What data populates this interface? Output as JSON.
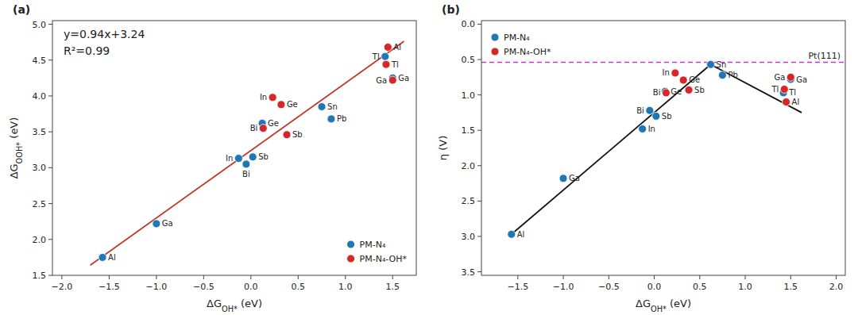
{
  "chart_data": [
    {
      "type": "scatter",
      "title": "(a)",
      "x_label": "ΔGOH* (eV)",
      "y_label": "ΔGOOH* (eV)",
      "xlim": [
        -2.1,
        1.75
      ],
      "ylim": [
        1.5,
        5.05
      ],
      "xticks": [
        {
          "value": -2,
          "label": "−2.0"
        },
        {
          "value": -1.5,
          "label": "−1.5"
        },
        {
          "value": -1,
          "label": "−1.0"
        },
        {
          "value": -0.5,
          "label": "−0.5"
        },
        {
          "value": 0,
          "label": "0.0"
        },
        0.5,
        {
          "value": 1,
          "label": "1.0"
        },
        1.5
      ],
      "yticks": [
        1.5,
        {
          "value": 2,
          "label": "2.0"
        },
        2.5,
        {
          "value": 3,
          "label": "3.0"
        },
        3.5,
        {
          "value": 4,
          "label": "4.0"
        },
        4.5,
        {
          "value": 5,
          "label": "5.0"
        }
      ],
      "grid": false,
      "legend": "lower right",
      "annotations": [
        "y=0.94x+3.24",
        "R²=0.99"
      ],
      "series": [
        {
          "type": "line",
          "color": "#c0392b",
          "line_style": "solid",
          "x": [
            -1.7,
            1.62
          ],
          "values": [
            1.642,
            4.7628
          ]
        },
        {
          "type": "scatter",
          "name": "PM-N₄",
          "color": "#1f77b4",
          "x": [
            -1.57,
            -1.0,
            -0.13,
            0.02,
            -0.05,
            0.12,
            0.75,
            0.85,
            1.42,
            1.5
          ],
          "values": [
            1.75,
            2.22,
            3.13,
            3.15,
            3.05,
            3.62,
            3.85,
            3.68,
            4.55,
            4.25
          ],
          "labels": [
            "Al",
            "Ga",
            "In",
            "Sb",
            "Bi",
            "Ge",
            "Sn",
            "Pb",
            "Tl",
            "Ga"
          ]
        },
        {
          "type": "scatter",
          "name": "PM-N₄-OH*",
          "color": "#d62728",
          "x": [
            0.23,
            0.32,
            0.13,
            0.38,
            1.45,
            1.43,
            1.5
          ],
          "values": [
            3.98,
            3.88,
            3.55,
            3.46,
            4.68,
            4.44,
            4.22
          ],
          "labels": [
            "In",
            "Ge",
            "Bi",
            "Sb",
            "Al",
            "Tl",
            "Ga"
          ]
        }
      ]
    },
    {
      "type": "scatter",
      "title": "(b)",
      "x_label": "ΔGOH* (eV)",
      "y_label": "η (V)",
      "xlim": [
        -1.9,
        2.1
      ],
      "ylim": [
        3.55,
        -0.05
      ],
      "xticks": [
        {
          "value": -1.5,
          "label": "−1.5"
        },
        {
          "value": -1,
          "label": "−1.0"
        },
        {
          "value": -0.5,
          "label": "−0.5"
        },
        {
          "value": 0,
          "label": "0.0"
        },
        0.5,
        {
          "value": 1,
          "label": "1.0"
        },
        1.5,
        {
          "value": 2,
          "label": "2.0"
        }
      ],
      "yticks": [
        {
          "value": 0,
          "label": "0.0"
        },
        0.5,
        {
          "value": 1,
          "label": "1.0"
        },
        1.5,
        {
          "value": 2,
          "label": "2.0"
        },
        2.5,
        {
          "value": 3,
          "label": "3.0"
        },
        3.5
      ],
      "grid": false,
      "legend": "upper left",
      "reference_lines": [
        {
          "value": 0.54,
          "label": "Pt(111)",
          "color": "#cc33cc",
          "line_style": "dashed"
        }
      ],
      "series": [
        {
          "type": "line",
          "color": "#111111",
          "line_style": "solid",
          "x": [
            -1.57,
            0.62
          ],
          "values": [
            2.97,
            0.57
          ]
        },
        {
          "type": "line",
          "color": "#111111",
          "line_style": "solid",
          "x": [
            0.62,
            1.62
          ],
          "values": [
            0.57,
            1.25
          ]
        },
        {
          "type": "scatter",
          "name": "PM-N₄",
          "color": "#1f77b4",
          "x": [
            -1.57,
            -1.0,
            -0.13,
            0.02,
            -0.05,
            0.12,
            0.62,
            0.75,
            1.42,
            1.5
          ],
          "values": [
            2.97,
            2.18,
            1.48,
            1.3,
            1.22,
            0.95,
            0.57,
            0.72,
            0.97,
            0.78
          ],
          "labels": [
            "Al",
            "Ga",
            "In",
            "Sb",
            "Bi",
            "Ge",
            "Sn",
            "Pb",
            "Tl",
            "Ga"
          ]
        },
        {
          "type": "scatter",
          "name": "PM-N₄-OH*",
          "color": "#d62728",
          "x": [
            0.23,
            0.32,
            0.13,
            0.38,
            1.45,
            1.43,
            1.5
          ],
          "values": [
            0.69,
            0.79,
            0.97,
            0.93,
            1.1,
            0.92,
            0.75
          ],
          "labels": [
            "In",
            "Ge",
            "Bi",
            "Sb",
            "Al",
            "Tl",
            "Ga"
          ]
        }
      ]
    }
  ]
}
